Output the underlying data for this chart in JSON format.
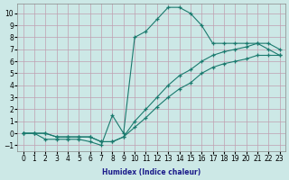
{
  "xlabel": "Humidex (Indice chaleur)",
  "xlim": [
    -0.5,
    23.5
  ],
  "ylim": [
    -1.5,
    10.8
  ],
  "xticks": [
    0,
    1,
    2,
    3,
    4,
    5,
    6,
    7,
    8,
    9,
    10,
    11,
    12,
    13,
    14,
    15,
    16,
    17,
    18,
    19,
    20,
    21,
    22,
    23
  ],
  "yticks": [
    -1,
    0,
    1,
    2,
    3,
    4,
    5,
    6,
    7,
    8,
    9,
    10
  ],
  "line_color": "#1a7a6e",
  "bg_color": "#cce8e6",
  "grid_color": "#c0a0b0",
  "curve_x": [
    0,
    1,
    2,
    3,
    4,
    5,
    6,
    7,
    8,
    9,
    10,
    11,
    12,
    13,
    14,
    15,
    16,
    17,
    18,
    19,
    20,
    21,
    22,
    23
  ],
  "curve_y": [
    0,
    0,
    -0.5,
    -0.5,
    -0.5,
    -0.5,
    -0.7,
    -1.0,
    1.5,
    0,
    8.0,
    8.5,
    9.5,
    10.5,
    10.5,
    10.0,
    9.0,
    7.5,
    7.5,
    7.5,
    7.5,
    7.5,
    7.0,
    6.5
  ],
  "line1_x": [
    0,
    1,
    2,
    3,
    4,
    5,
    6,
    7,
    8,
    9,
    10,
    11,
    12,
    13,
    14,
    15,
    16,
    17,
    18,
    19,
    20,
    21,
    22,
    23
  ],
  "line1_y": [
    0,
    0,
    0,
    -0.3,
    -0.3,
    -0.3,
    -0.3,
    -0.7,
    -0.7,
    -0.3,
    0.5,
    1.3,
    2.2,
    3.0,
    3.7,
    4.2,
    5.0,
    5.5,
    5.8,
    6.0,
    6.2,
    6.5,
    6.5,
    6.5
  ],
  "line2_x": [
    0,
    1,
    2,
    3,
    4,
    5,
    6,
    7,
    8,
    9,
    10,
    11,
    12,
    13,
    14,
    15,
    16,
    17,
    18,
    19,
    20,
    21,
    22,
    23
  ],
  "line2_y": [
    0,
    0,
    0,
    -0.3,
    -0.3,
    -0.3,
    -0.3,
    -0.7,
    -0.7,
    -0.3,
    1.0,
    2.0,
    3.0,
    4.0,
    4.8,
    5.3,
    6.0,
    6.5,
    6.8,
    7.0,
    7.2,
    7.5,
    7.5,
    7.0
  ]
}
